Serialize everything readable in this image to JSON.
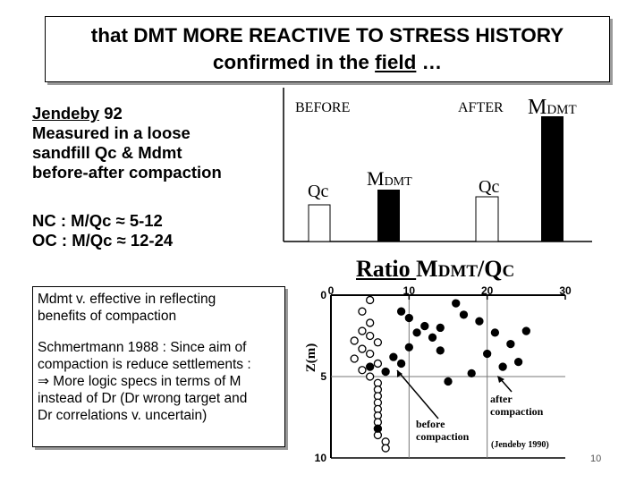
{
  "title": {
    "line1": "that DMT MORE REACTIVE TO STRESS HISTORY",
    "line2_pre": "confirmed in the ",
    "line2_field": "field",
    "line2_post": " …"
  },
  "left": {
    "jendeby_name": "Jendeby",
    "jendeby_year": " 92",
    "line2": "Measured in a loose",
    "line3": "sandfill Qc & Mdmt",
    "line4": "before-after compaction",
    "nc": "NC : M/Qc ≈ 5-12",
    "oc": "OC : M/Qc ≈ 12-24"
  },
  "bar_chart": {
    "before_label": "BEFORE",
    "after_label": "AFTER",
    "m_big": "M",
    "m_sub": "DMT",
    "qc_label": "Qc"
  },
  "ratio_title": {
    "ratio": "Ratio ",
    "m": "M",
    "dmt": "DMT",
    "slash": "/Q",
    "c": "C"
  },
  "note": {
    "p1_line1": "Mdmt v. effective in reflecting",
    "p1_line2": "benefits of compaction",
    "p2_line1": "Schmertmann 1988 : Since aim of",
    "p2_line2": "compaction is reduce settlements :",
    "p2_line3": "⇒ More logic specs in terms of M",
    "p2_line4": "instead of Dr (Dr wrong target and",
    "p2_line5": "Dr correlations v. uncertain)"
  },
  "chart_data": {
    "type": "scatter",
    "title": "Ratio MDMT/QC",
    "xlabel": "",
    "ylabel": "Z(m)",
    "xlim": [
      0,
      30
    ],
    "ylim": [
      10,
      0
    ],
    "x_ticks": [
      "0",
      "10",
      "20",
      "30"
    ],
    "y_ticks": [
      "0",
      "5",
      "10"
    ],
    "annotations": [
      "before compaction",
      "after compaction",
      "(Jendeby 1990)"
    ],
    "series": [
      {
        "values": [
          [
            5,
            0.3
          ],
          [
            4,
            1.0
          ],
          [
            5,
            1.7
          ],
          [
            4,
            2.2
          ],
          [
            5,
            2.5
          ],
          [
            3,
            2.8
          ],
          [
            6,
            2.9
          ],
          [
            4,
            3.3
          ],
          [
            5,
            3.6
          ],
          [
            3,
            3.9
          ],
          [
            6,
            4.2
          ],
          [
            4,
            4.6
          ],
          [
            5,
            5.0
          ],
          [
            6,
            5.4
          ],
          [
            6,
            5.8
          ],
          [
            6,
            6.2
          ],
          [
            6,
            6.6
          ],
          [
            6,
            7.0
          ],
          [
            6,
            7.4
          ],
          [
            6,
            7.8
          ],
          [
            6,
            8.2
          ],
          [
            6,
            8.6
          ],
          [
            7,
            9.0
          ],
          [
            7,
            9.4
          ]
        ]
      },
      {
        "values": [
          [
            9,
            1.0
          ],
          [
            10,
            1.4
          ],
          [
            12,
            1.9
          ],
          [
            11,
            2.3
          ],
          [
            13,
            2.6
          ],
          [
            10,
            3.2
          ],
          [
            14,
            3.4
          ],
          [
            8,
            3.8
          ],
          [
            9,
            4.2
          ],
          [
            5,
            4.4
          ],
          [
            7,
            4.7
          ],
          [
            16,
            0.5
          ],
          [
            17,
            1.2
          ],
          [
            14,
            2.0
          ],
          [
            19,
            1.6
          ],
          [
            21,
            2.3
          ],
          [
            23,
            3.0
          ],
          [
            20,
            3.6
          ],
          [
            24,
            4.1
          ],
          [
            22,
            4.4
          ],
          [
            18,
            4.8
          ],
          [
            15,
            5.3
          ],
          [
            25,
            2.2
          ],
          [
            6,
            8.2
          ]
        ]
      }
    ]
  },
  "page_number": "10"
}
